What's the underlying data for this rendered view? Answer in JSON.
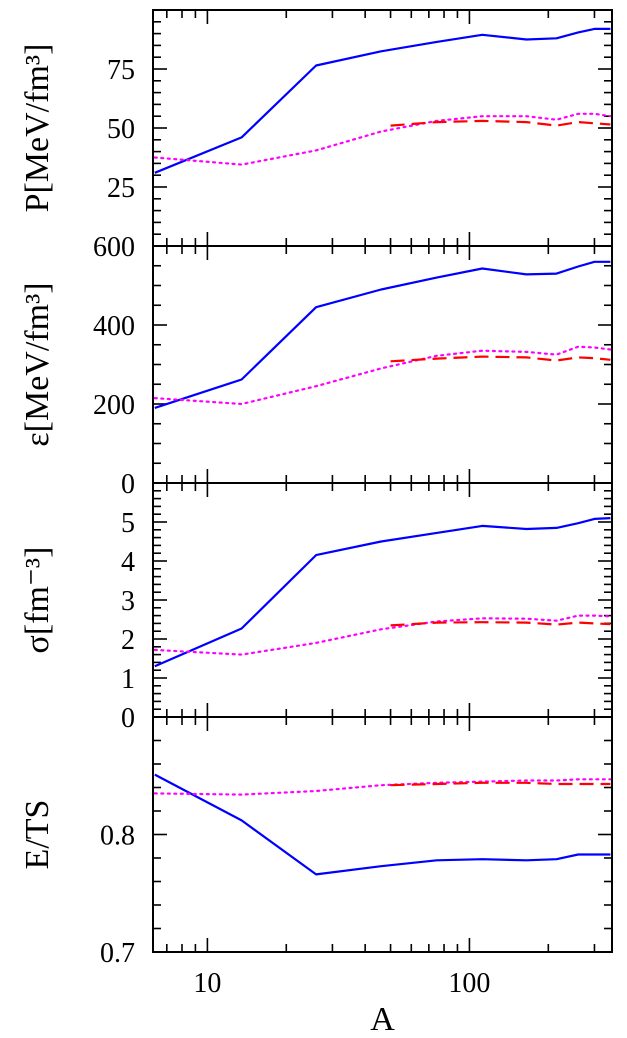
{
  "chart_data": [
    {
      "type": "line",
      "ylabel": "P[MeV/fm³]",
      "xscale": "log",
      "xlim": [
        6.2,
        350
      ],
      "ylim": [
        0,
        100
      ],
      "yticks": [
        25,
        50,
        75
      ],
      "series": [
        {
          "color": "#0000ff",
          "style": "solid",
          "x": [
            6.3,
            13.5,
            26,
            46,
            75,
            112,
            165,
            215,
            260,
            300,
            345
          ],
          "y": [
            31,
            46,
            76.5,
            82.5,
            86.5,
            89.5,
            87.5,
            88,
            90.5,
            92,
            92
          ]
        },
        {
          "color": "#ff00ff",
          "style": "dotted",
          "x": [
            6.3,
            13.5,
            26,
            46,
            75,
            112,
            165,
            215,
            260,
            300,
            345
          ],
          "y": [
            37.5,
            34.5,
            40.5,
            48.5,
            53,
            55,
            55,
            53.5,
            56,
            56,
            55
          ]
        },
        {
          "color": "#ff0000",
          "style": "dashed",
          "x": [
            50,
            75,
            112,
            165,
            215,
            260,
            300,
            345
          ],
          "y": [
            51,
            52.5,
            53,
            52.5,
            51,
            52.5,
            52,
            51.5
          ]
        }
      ]
    },
    {
      "type": "line",
      "ylabel": "ε[MeV/fm³]",
      "xscale": "log",
      "xlim": [
        6.2,
        350
      ],
      "ylim": [
        0,
        600
      ],
      "yticks": [
        0,
        200,
        400,
        600
      ],
      "series": [
        {
          "color": "#0000ff",
          "style": "solid",
          "x": [
            6.3,
            13.5,
            26,
            46,
            75,
            112,
            165,
            215,
            260,
            300,
            345
          ],
          "y": [
            190,
            262,
            445,
            490,
            520,
            543,
            528,
            530,
            548,
            560,
            560
          ]
        },
        {
          "color": "#ff00ff",
          "style": "dotted",
          "x": [
            6.3,
            13.5,
            26,
            46,
            75,
            112,
            165,
            215,
            260,
            300,
            345
          ],
          "y": [
            215,
            200,
            245,
            290,
            322,
            335,
            332,
            325,
            345,
            343,
            338
          ]
        },
        {
          "color": "#ff0000",
          "style": "dashed",
          "x": [
            50,
            75,
            112,
            165,
            215,
            260,
            300,
            345
          ],
          "y": [
            308,
            315,
            320,
            318,
            310,
            318,
            316,
            312
          ]
        }
      ]
    },
    {
      "type": "line",
      "ylabel": "σ[fm⁻³]",
      "xscale": "log",
      "xlim": [
        6.2,
        350
      ],
      "ylim": [
        0,
        6
      ],
      "yticks": [
        0,
        1,
        2,
        3,
        4,
        5
      ],
      "series": [
        {
          "color": "#0000ff",
          "style": "solid",
          "x": [
            6.3,
            13.5,
            26,
            46,
            75,
            112,
            165,
            215,
            260,
            300,
            345
          ],
          "y": [
            1.3,
            2.27,
            4.15,
            4.5,
            4.72,
            4.9,
            4.82,
            4.85,
            4.97,
            5.08,
            5.1
          ]
        },
        {
          "color": "#ff00ff",
          "style": "dotted",
          "x": [
            6.3,
            13.5,
            26,
            46,
            75,
            112,
            165,
            215,
            260,
            300,
            345
          ],
          "y": [
            1.72,
            1.6,
            1.9,
            2.25,
            2.45,
            2.53,
            2.52,
            2.47,
            2.6,
            2.6,
            2.58
          ]
        },
        {
          "color": "#ff0000",
          "style": "dashed",
          "x": [
            50,
            75,
            112,
            165,
            215,
            260,
            300,
            345
          ],
          "y": [
            2.35,
            2.42,
            2.43,
            2.42,
            2.37,
            2.42,
            2.4,
            2.38
          ]
        }
      ]
    },
    {
      "type": "line",
      "ylabel": "E/TS",
      "xlabel": "A",
      "xscale": "log",
      "xlim": [
        6.2,
        350
      ],
      "ylim": [
        0.7,
        0.9
      ],
      "yticks": [
        0.7,
        0.8
      ],
      "xticks": [
        10,
        100
      ],
      "series": [
        {
          "color": "#0000ff",
          "style": "solid",
          "x": [
            6.3,
            13.5,
            26,
            46,
            75,
            112,
            165,
            215,
            260,
            300,
            345
          ],
          "y": [
            0.851,
            0.812,
            0.766,
            0.773,
            0.778,
            0.779,
            0.778,
            0.779,
            0.783,
            0.783,
            0.783
          ]
        },
        {
          "color": "#ff00ff",
          "style": "dotted",
          "x": [
            6.3,
            13.5,
            26,
            46,
            75,
            112,
            165,
            215,
            260,
            300,
            345
          ],
          "y": [
            0.835,
            0.834,
            0.837,
            0.842,
            0.844,
            0.845,
            0.846,
            0.846,
            0.847,
            0.847,
            0.847
          ]
        },
        {
          "color": "#ff0000",
          "style": "dashed",
          "x": [
            50,
            75,
            112,
            165,
            215,
            260,
            300,
            345
          ],
          "y": [
            0.842,
            0.843,
            0.844,
            0.844,
            0.843,
            0.843,
            0.843,
            0.843
          ]
        }
      ]
    }
  ]
}
